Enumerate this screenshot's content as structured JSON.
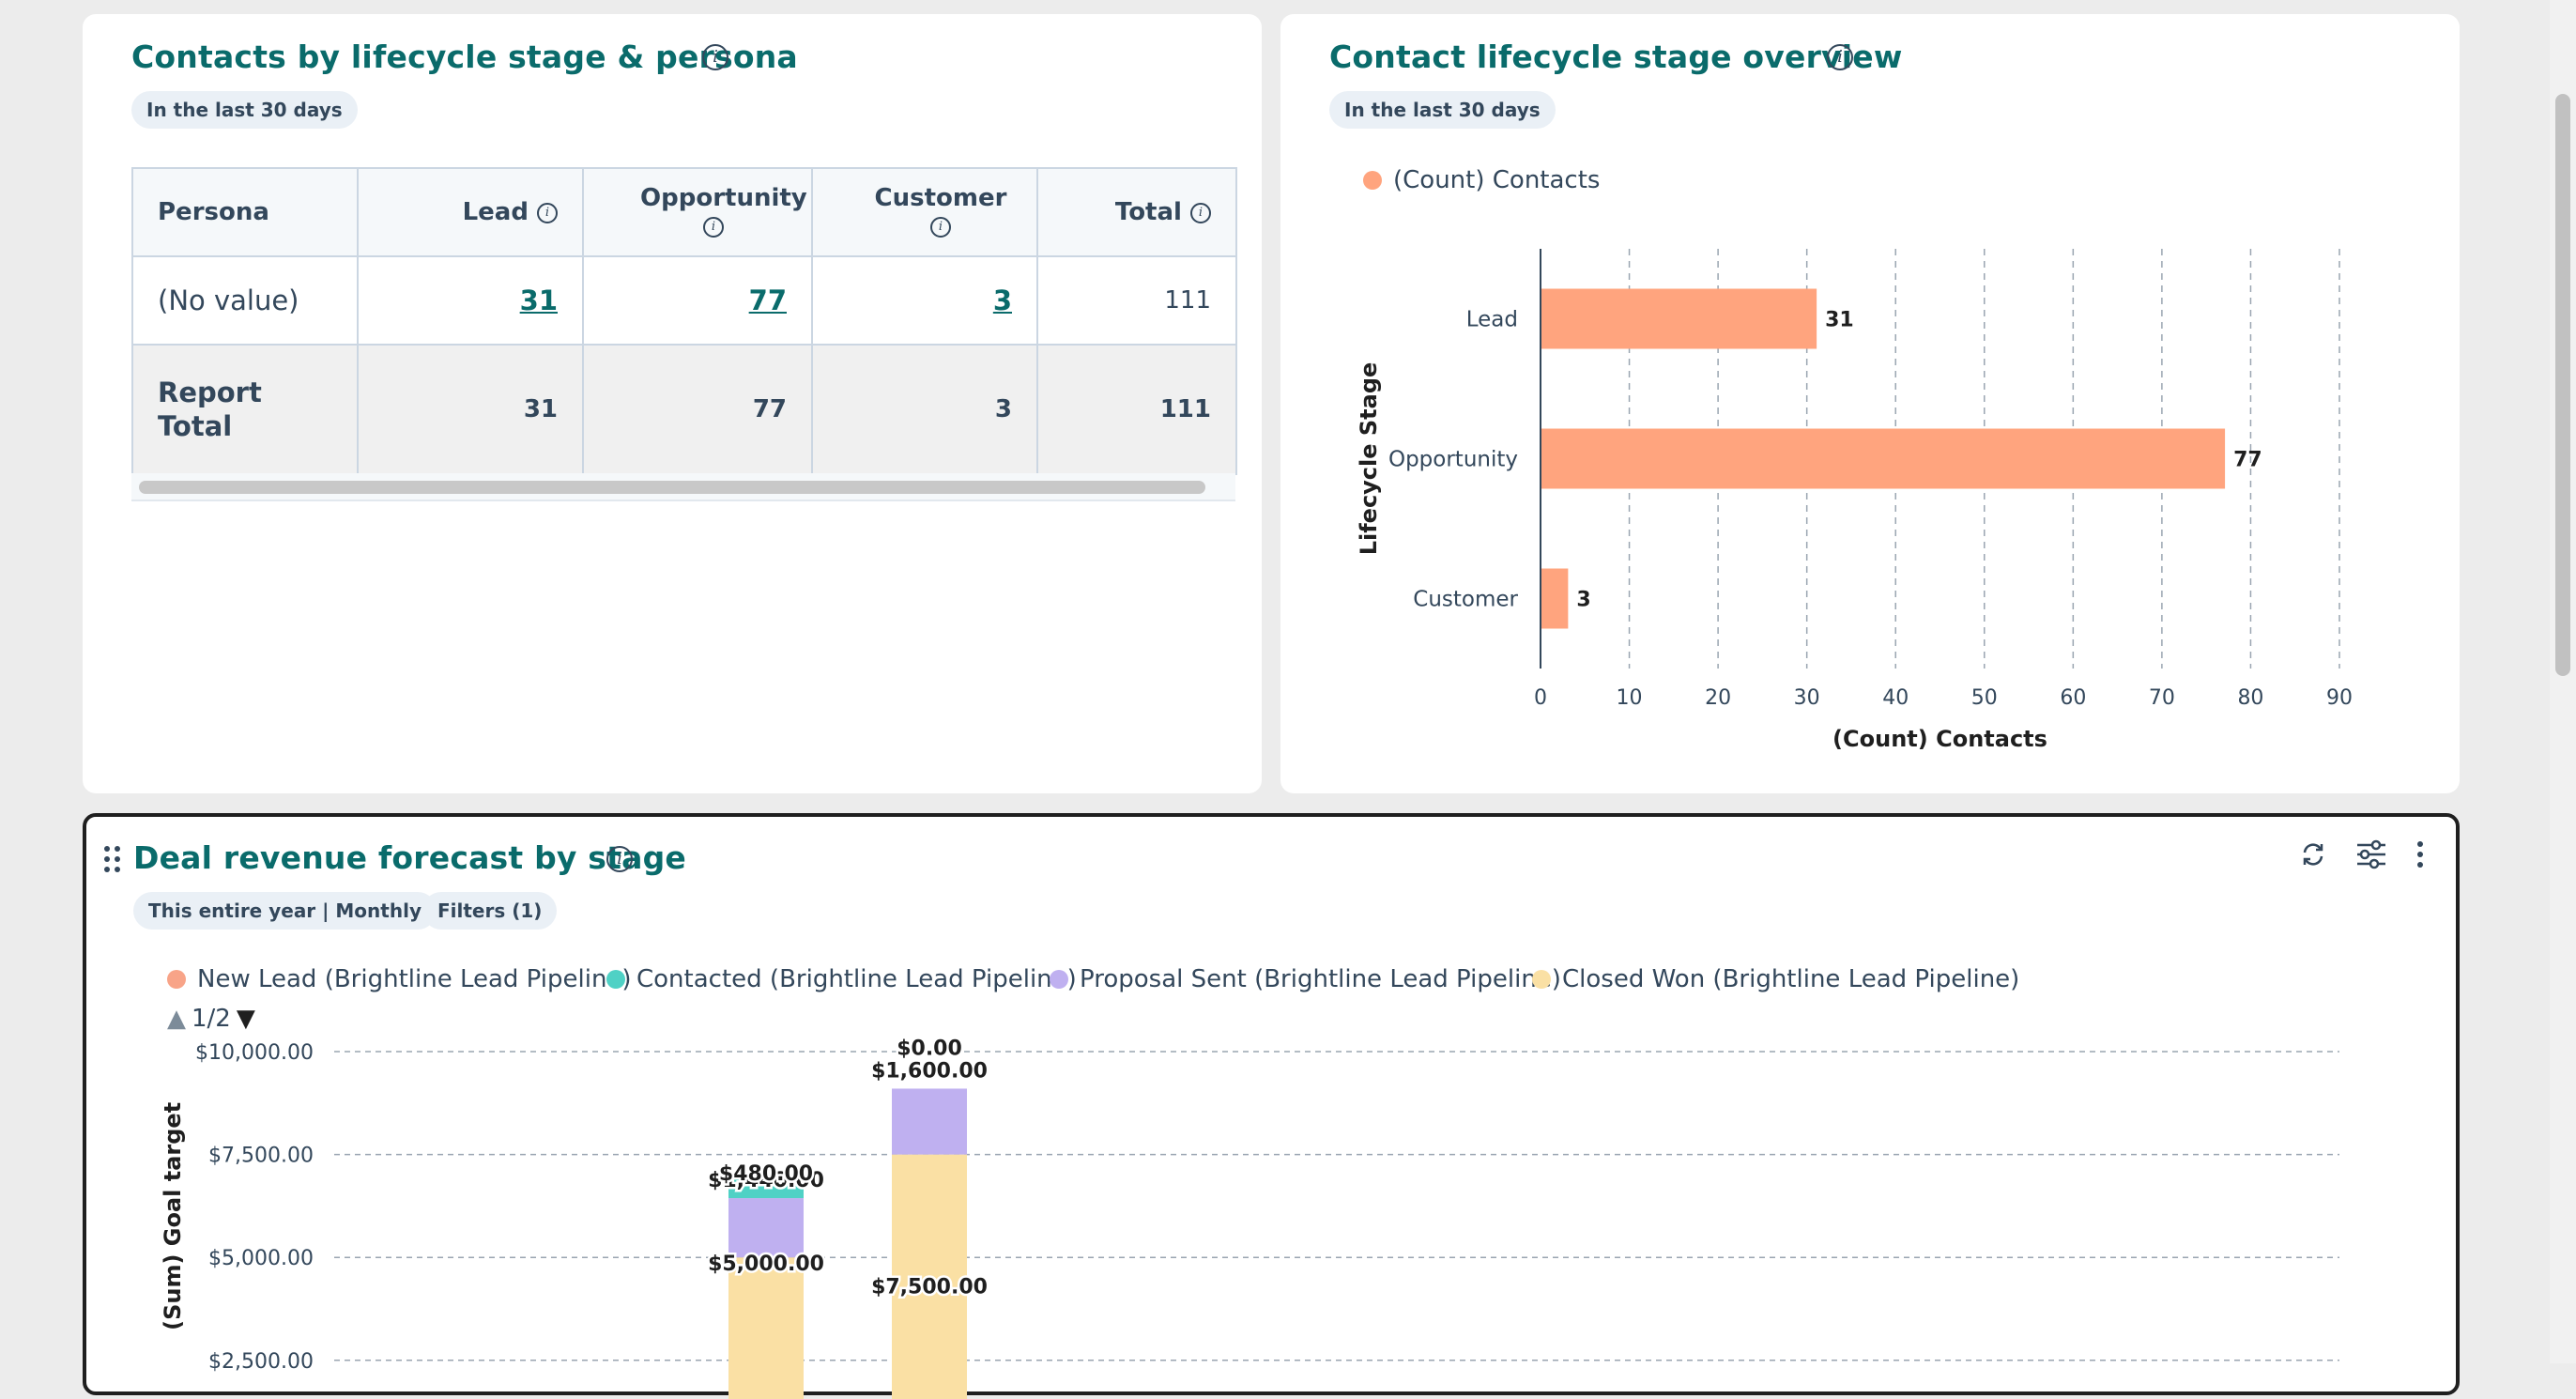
{
  "card1": {
    "title": "Contacts by lifecycle stage & persona",
    "date_range": "In the last 30 days",
    "table": {
      "headers": [
        "Persona",
        "Lead",
        "Opportunity",
        "Customer",
        "Total"
      ],
      "rows": [
        {
          "persona": "(No value)",
          "lead": "31",
          "opportunity": "77",
          "customer": "3",
          "total": "111"
        }
      ],
      "total_row": {
        "label_line1": "Report",
        "label_line2": "Total",
        "lead": "31",
        "opportunity": "77",
        "customer": "3",
        "total": "111"
      }
    }
  },
  "card2": {
    "title": "Contact lifecycle stage overview",
    "date_range": "In the last 30 days",
    "legend": "(Count) Contacts"
  },
  "card3": {
    "title": "Deal revenue forecast by stage",
    "date_range": "This entire year | Monthly",
    "filters": "Filters (1)",
    "legend": [
      {
        "label": "New Lead (Brightline Lead Pipeline)",
        "color": "#f8a488"
      },
      {
        "label": "Contacted (Brightline Lead Pipeline)",
        "color": "#4fd1c5"
      },
      {
        "label": "Proposal Sent (Brightline Lead Pipeline)",
        "color": "#bfb0f0"
      },
      {
        "label": "Closed Won (Brightline Lead Pipeline)",
        "color": "#fae0a4"
      }
    ],
    "pager": "1/2"
  },
  "chart_data": [
    {
      "type": "bar",
      "orientation": "horizontal",
      "categories": [
        "Lead",
        "Opportunity",
        "Customer"
      ],
      "series": [
        {
          "name": "(Count) Contacts",
          "values": [
            31,
            77,
            3
          ],
          "color": "#ffa47e"
        }
      ],
      "xlabel": "(Count) Contacts",
      "ylabel": "Lifecycle Stage",
      "xlim": [
        0,
        90
      ],
      "xticks": [
        "0",
        "10",
        "20",
        "30",
        "40",
        "50",
        "60",
        "70",
        "80",
        "90"
      ],
      "data_labels": [
        "31",
        "77",
        "3"
      ],
      "grid": true,
      "legend_position": "top-left"
    },
    {
      "type": "bar",
      "stacked": true,
      "ylabel": "(Sum) Goal target",
      "ylim": [
        0,
        10000
      ],
      "yticks": [
        "$10,000.00",
        "$7,500.00",
        "$5,000.00",
        "$2,500.00"
      ],
      "bars": [
        {
          "stack": [
            {
              "series": "Closed Won (Brightline Lead Pipeline)",
              "value": 5000,
              "label": "$5,000.00"
            },
            {
              "series": "Proposal Sent (Brightline Lead Pipeline)",
              "value": 1440,
              "label": "$1,440.00"
            },
            {
              "series": "Contacted (Brightline Lead Pipeline)",
              "value": 480,
              "label": "$480.00"
            }
          ]
        },
        {
          "stack": [
            {
              "series": "Closed Won (Brightline Lead Pipeline)",
              "value": 7500,
              "label": "$7,500.00"
            },
            {
              "series": "Proposal Sent (Brightline Lead Pipeline)",
              "value": 1600,
              "label": "$1,600.00"
            },
            {
              "series": "Contacted (Brightline Lead Pipeline)",
              "value": 0,
              "label": "$0.00"
            }
          ]
        }
      ],
      "grid": true,
      "legend_position": "top"
    }
  ]
}
